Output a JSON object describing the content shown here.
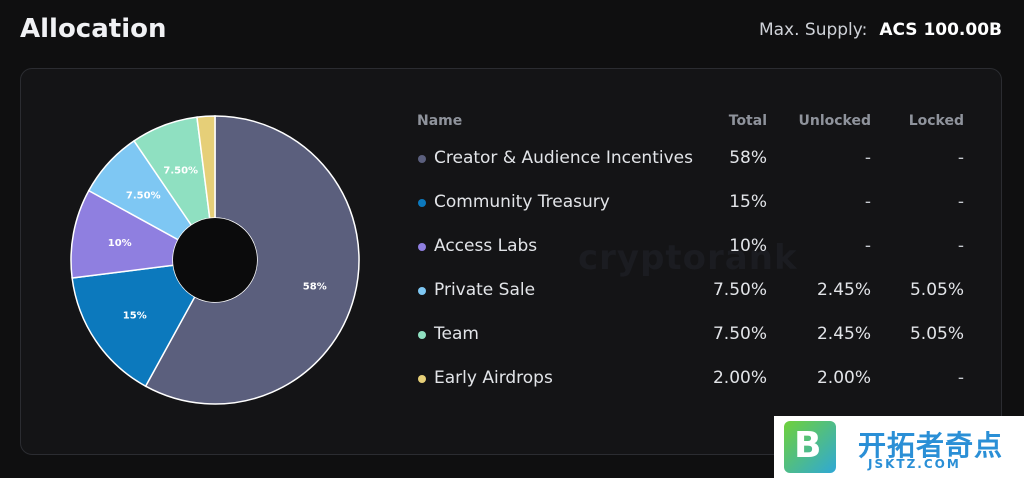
{
  "header": {
    "title": "Allocation",
    "supply_label": "Max. Supply:",
    "supply_value": "ACS 100.00B"
  },
  "watermark": "cryptorank",
  "table": {
    "headers": {
      "name": "Name",
      "total": "Total",
      "unlocked": "Unlocked",
      "locked": "Locked"
    },
    "rows": [
      {
        "name": "Creator & Audience Incentives",
        "total": "58%",
        "unlocked": "-",
        "locked": "-",
        "color": "#5b5f7d"
      },
      {
        "name": "Community Treasury",
        "total": "15%",
        "unlocked": "-",
        "locked": "-",
        "color": "#0c79bd"
      },
      {
        "name": "Access Labs",
        "total": "10%",
        "unlocked": "-",
        "locked": "-",
        "color": "#8f7fe0"
      },
      {
        "name": "Private Sale",
        "total": "7.50%",
        "unlocked": "2.45%",
        "locked": "5.05%",
        "color": "#7ec7f3"
      },
      {
        "name": "Team",
        "total": "7.50%",
        "unlocked": "2.45%",
        "locked": "5.05%",
        "color": "#8fe0c1"
      },
      {
        "name": "Early Airdrops",
        "total": "2.00%",
        "unlocked": "2.00%",
        "locked": "-",
        "color": "#e6cf78"
      }
    ]
  },
  "chart_data": {
    "type": "pie",
    "donut": true,
    "categories": [
      "Creator & Audience Incentives",
      "Community Treasury",
      "Access Labs",
      "Private Sale",
      "Team",
      "Early Airdrops"
    ],
    "values": [
      58,
      15,
      10,
      7.5,
      7.5,
      2
    ],
    "slice_labels": [
      "58%",
      "15%",
      "10%",
      "7.50%",
      "7.50%",
      ""
    ],
    "colors": [
      "#5b5f7d",
      "#0c79bd",
      "#8f7fe0",
      "#7ec7f3",
      "#8fe0c1",
      "#e6cf78"
    ]
  },
  "promo": {
    "logo_letter": "B",
    "text_cn": "开拓者奇点",
    "text_en": "JSKTZ.COM"
  }
}
